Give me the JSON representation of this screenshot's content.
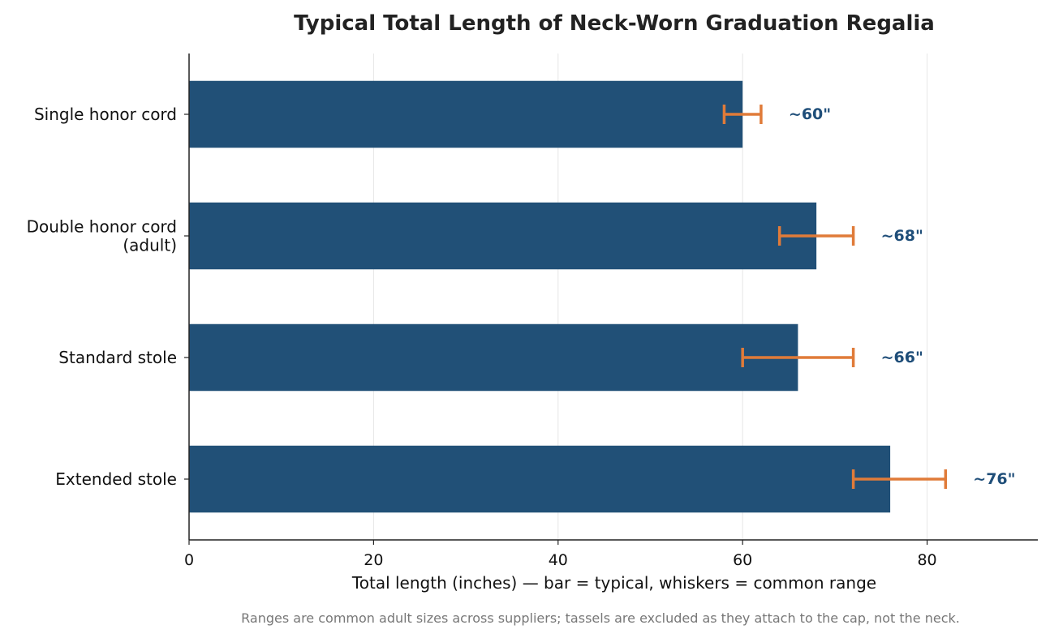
{
  "chart_data": {
    "type": "bar",
    "orientation": "horizontal",
    "title": "Typical Total Length of Neck-Worn Graduation Regalia",
    "xlabel": "Total length (inches) — bar = typical, whiskers = common range",
    "ylabel": "",
    "categories": [
      [
        "Single honor cord"
      ],
      [
        "Double honor cord",
        "(adult)"
      ],
      [
        "Standard stole"
      ],
      [
        "Extended stole"
      ]
    ],
    "values": [
      60,
      68,
      66,
      76
    ],
    "range_low": [
      58,
      64,
      60,
      72
    ],
    "range_high": [
      62,
      72,
      72,
      82
    ],
    "value_labels": [
      "~60\"",
      "~68\"",
      "~66\"",
      "~76\""
    ],
    "xlim": [
      0,
      92
    ],
    "xticks": [
      0,
      20,
      40,
      60,
      80
    ],
    "xtick_labels": [
      "0",
      "20",
      "40",
      "60",
      "80"
    ],
    "grid": "vertical",
    "legend": "none",
    "footnote": "Ranges are common adult sizes across suppliers; tassels are excluded as they attach to the cap, not the neck.",
    "colors": {
      "bar": "#215077",
      "whisker": "#e07b39",
      "value_label": "#1f4e79",
      "grid": "#e6e6e6",
      "axis": "#222222"
    }
  }
}
